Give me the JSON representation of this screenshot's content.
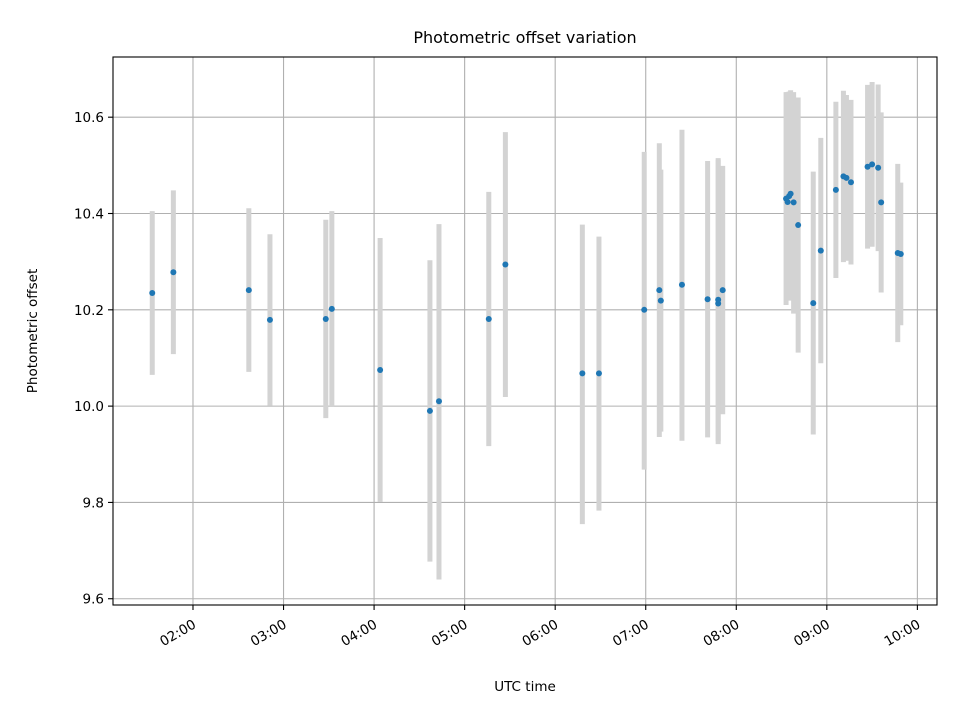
{
  "chart_data": {
    "type": "scatter",
    "title": "Photometric offset variation",
    "xlabel": "UTC time",
    "ylabel": "Photometric offset",
    "x_unit": "UTC time (HH:MM)",
    "xlim": [
      "01:07",
      "10:13"
    ],
    "ylim": [
      9.587,
      10.725
    ],
    "x_ticks": [
      "02:00",
      "03:00",
      "04:00",
      "05:00",
      "06:00",
      "07:00",
      "08:00",
      "09:00",
      "10:00"
    ],
    "y_ticks": [
      "9.6",
      "9.8",
      "10.0",
      "10.2",
      "10.4",
      "10.6"
    ],
    "grid": true,
    "point_color": "#1f77b4",
    "errorbar_color": "#d3d3d3",
    "series": [
      {
        "points": [
          {
            "x": "01:33",
            "y": 10.235,
            "lo": 10.065,
            "hi": 10.405
          },
          {
            "x": "01:47",
            "y": 10.278,
            "lo": 10.108,
            "hi": 10.448
          },
          {
            "x": "02:37",
            "y": 10.241,
            "lo": 10.071,
            "hi": 10.411
          },
          {
            "x": "02:51",
            "y": 10.179,
            "lo": 10.001,
            "hi": 10.357
          },
          {
            "x": "03:28",
            "y": 10.181,
            "lo": 9.975,
            "hi": 10.387
          },
          {
            "x": "03:32",
            "y": 10.202,
            "lo": 10.0,
            "hi": 10.405
          },
          {
            "x": "04:04",
            "y": 10.075,
            "lo": 9.801,
            "hi": 10.349
          },
          {
            "x": "04:37",
            "y": 9.99,
            "lo": 9.677,
            "hi": 10.303
          },
          {
            "x": "04:43",
            "y": 10.01,
            "lo": 9.64,
            "hi": 10.378
          },
          {
            "x": "05:16",
            "y": 10.181,
            "lo": 9.917,
            "hi": 10.445
          },
          {
            "x": "05:27",
            "y": 10.294,
            "lo": 10.019,
            "hi": 10.569
          },
          {
            "x": "06:18",
            "y": 10.068,
            "lo": 9.755,
            "hi": 10.377
          },
          {
            "x": "06:29",
            "y": 10.068,
            "lo": 9.783,
            "hi": 10.352
          },
          {
            "x": "06:59",
            "y": 10.2,
            "lo": 9.868,
            "hi": 10.528
          },
          {
            "x": "07:09",
            "y": 10.241,
            "lo": 9.936,
            "hi": 10.546
          },
          {
            "x": "07:10",
            "y": 10.219,
            "lo": 9.947,
            "hi": 10.491
          },
          {
            "x": "07:24",
            "y": 10.252,
            "lo": 9.928,
            "hi": 10.574
          },
          {
            "x": "07:41",
            "y": 10.222,
            "lo": 9.935,
            "hi": 10.509
          },
          {
            "x": "07:48",
            "y": 10.213,
            "lo": 9.921,
            "hi": 10.512
          },
          {
            "x": "07:48",
            "y": 10.221,
            "lo": 9.927,
            "hi": 10.515
          },
          {
            "x": "07:51",
            "y": 10.241,
            "lo": 9.983,
            "hi": 10.499
          },
          {
            "x": "08:33",
            "y": 10.431,
            "lo": 10.21,
            "hi": 10.652
          },
          {
            "x": "08:34",
            "y": 10.424,
            "lo": 10.222,
            "hi": 10.652
          },
          {
            "x": "08:35",
            "y": 10.436,
            "lo": 10.219,
            "hi": 10.653
          },
          {
            "x": "08:36",
            "y": 10.441,
            "lo": 10.226,
            "hi": 10.656
          },
          {
            "x": "08:38",
            "y": 10.423,
            "lo": 10.192,
            "hi": 10.652
          },
          {
            "x": "08:41",
            "y": 10.376,
            "lo": 10.111,
            "hi": 10.641
          },
          {
            "x": "08:51",
            "y": 10.214,
            "lo": 9.941,
            "hi": 10.487
          },
          {
            "x": "08:56",
            "y": 10.323,
            "lo": 10.089,
            "hi": 10.557
          },
          {
            "x": "09:06",
            "y": 10.449,
            "lo": 10.266,
            "hi": 10.632
          },
          {
            "x": "09:11",
            "y": 10.477,
            "lo": 10.299,
            "hi": 10.655
          },
          {
            "x": "09:13",
            "y": 10.474,
            "lo": 10.302,
            "hi": 10.646
          },
          {
            "x": "09:16",
            "y": 10.465,
            "lo": 10.294,
            "hi": 10.636
          },
          {
            "x": "09:27",
            "y": 10.497,
            "lo": 10.327,
            "hi": 10.667
          },
          {
            "x": "09:30",
            "y": 10.502,
            "lo": 10.331,
            "hi": 10.673
          },
          {
            "x": "09:34",
            "y": 10.495,
            "lo": 10.322,
            "hi": 10.668
          },
          {
            "x": "09:36",
            "y": 10.423,
            "lo": 10.236,
            "hi": 10.61
          },
          {
            "x": "09:47",
            "y": 10.318,
            "lo": 10.133,
            "hi": 10.503
          },
          {
            "x": "09:49",
            "y": 10.316,
            "lo": 10.168,
            "hi": 10.464
          }
        ]
      }
    ]
  }
}
